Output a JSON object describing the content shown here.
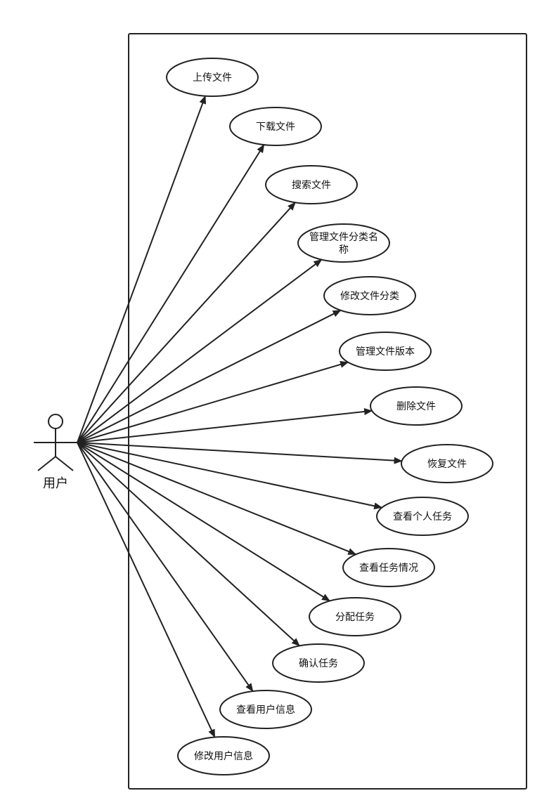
{
  "actor": {
    "label": "用户"
  },
  "use_cases": [
    {
      "id": "upload-file",
      "lines": [
        "上传文件"
      ]
    },
    {
      "id": "download-file",
      "lines": [
        "下载文件"
      ]
    },
    {
      "id": "search-file",
      "lines": [
        "搜索文件"
      ]
    },
    {
      "id": "manage-category-name",
      "lines": [
        "管理文件分类名",
        "称"
      ]
    },
    {
      "id": "modify-file-category",
      "lines": [
        "修改文件分类"
      ]
    },
    {
      "id": "manage-file-version",
      "lines": [
        "管理文件版本"
      ]
    },
    {
      "id": "delete-file",
      "lines": [
        "删除文件"
      ]
    },
    {
      "id": "restore-file",
      "lines": [
        "恢复文件"
      ]
    },
    {
      "id": "view-personal-tasks",
      "lines": [
        "查看个人任务"
      ]
    },
    {
      "id": "view-task-status",
      "lines": [
        "查看任务情况"
      ]
    },
    {
      "id": "assign-task",
      "lines": [
        "分配任务"
      ]
    },
    {
      "id": "confirm-task",
      "lines": [
        "确认任务"
      ]
    },
    {
      "id": "view-user-info",
      "lines": [
        "查看用户信息"
      ]
    },
    {
      "id": "modify-user-info",
      "lines": [
        "修改用户信息"
      ]
    }
  ]
}
